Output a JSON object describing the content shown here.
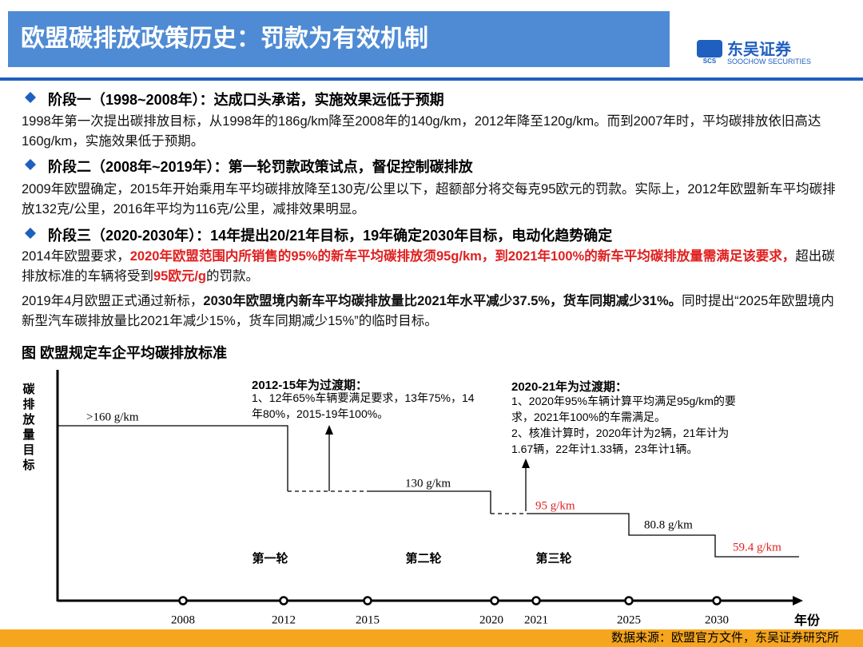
{
  "header": {
    "title": "欧盟碳排放政策历史：罚款为有效机制",
    "logo_mark": "SCS",
    "logo_cn": "东吴证券",
    "logo_en": "SOOCHOW SECURITIES"
  },
  "sections": [
    {
      "heading": "阶段一（1998~2008年）：达成口头承诺，实施效果远低于预期",
      "paragraphs": [
        [
          {
            "text": "1998年第一次提出碳排放目标，从1998年的186g/km降至2008年的140g/km，2012年降至120g/km。而到2007年时，平均碳排放依旧高达160g/km，实施效果低于预期。",
            "style": "normal"
          }
        ]
      ]
    },
    {
      "heading": "阶段二（2008年~2019年）：第一轮罚款政策试点，督促控制碳排放",
      "paragraphs": [
        [
          {
            "text": "2009年欧盟确定，2015年开始乘用车平均碳排放降至130克/公里以下，超额部分将交每克95欧元的罚款。实际上，2012年欧盟新车平均碳排放132克/公里，2016年平均为116克/公里，减排效果明显。",
            "style": "normal"
          }
        ]
      ]
    },
    {
      "heading": "阶段三（2020-2030年）：14年提出20/21年目标，19年确定2030年目标，电动化趋势确定",
      "paragraphs": [
        [
          {
            "text": "2014年欧盟要求，",
            "style": "normal"
          },
          {
            "text": "2020年欧盟范围内所销售的95%的新车平均碳排放须95g/km，到2021年100%的新车平均碳排放量需满足该要求，",
            "style": "red"
          },
          {
            "text": "超出碳排放标准的车辆将受到",
            "style": "normal"
          },
          {
            "text": "95欧元/g",
            "style": "red"
          },
          {
            "text": "的罚款。",
            "style": "normal"
          }
        ],
        [
          {
            "text": "2019年4月欧盟正式通过新标，",
            "style": "normal"
          },
          {
            "text": "2030年欧盟境内新车平均碳排放量比2021年水平减少37.5%，货车同期减少31%。",
            "style": "bold"
          },
          {
            "text": "同时提出“2025年欧盟境内新型汽车碳排放量比2021年减少15%，货车同期减少15%”的临时目标。",
            "style": "normal"
          }
        ]
      ]
    }
  ],
  "figure": {
    "title": "图  欧盟规定车企平均碳排放标准",
    "y_label": "碳排放量目标",
    "x_label": "年份",
    "years": [
      "2008",
      "2012",
      "2015",
      "2020",
      "2021",
      "2025",
      "2030"
    ],
    "levels": [
      {
        "text": ">160 g/km",
        "color": "#000000"
      },
      {
        "text": "130 g/km",
        "color": "#000000"
      },
      {
        "text": "95 g/km",
        "color": "#e02020"
      },
      {
        "text": "80.8 g/km",
        "color": "#000000"
      },
      {
        "text": "59.4 g/km",
        "color": "#e02020"
      }
    ],
    "notes": [
      {
        "title": "2012-15年为过渡期：",
        "lines": [
          "1、12年65%车辆要满足要求，13年75%，14",
          "年80%，2015-19年100%。"
        ]
      },
      {
        "title": "2020-21年为过渡期：",
        "lines": [
          "1、2020年95%车辆计算平均满足95g/km的要",
          "求，2021年100%的车需满足。",
          "2、核准计算时，2020年计为2辆，21年计为",
          "1.67辆，22年计1.33辆，23年计1辆。"
        ]
      }
    ],
    "phases": [
      "第一轮",
      "第二轮",
      "第三轮"
    ]
  },
  "footer": {
    "source": "数据来源：欧盟官方文件，东吴证券研究所"
  }
}
